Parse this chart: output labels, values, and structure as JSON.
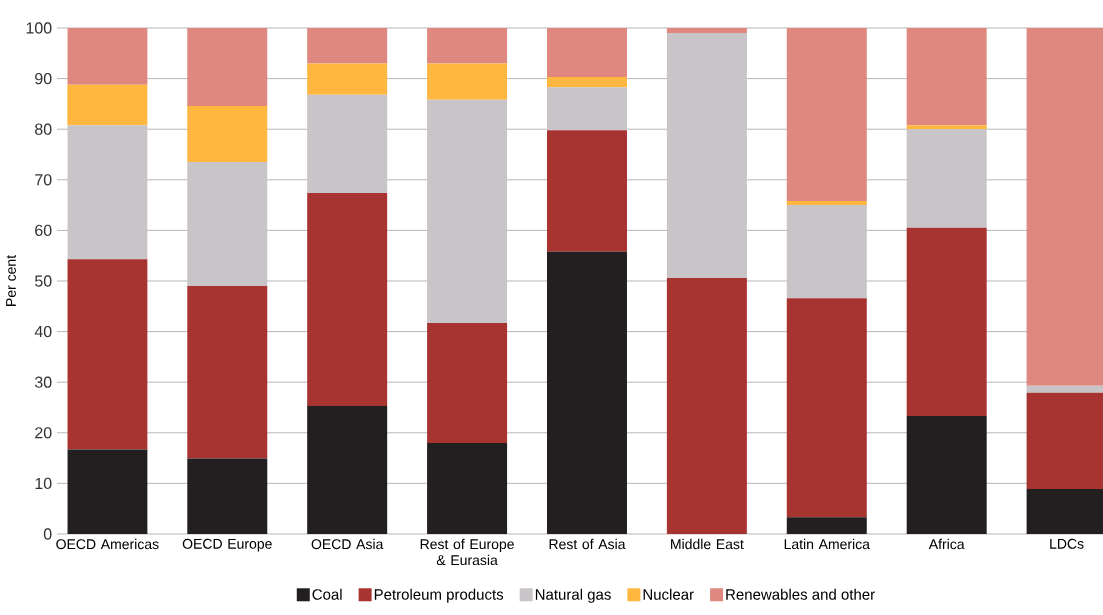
{
  "chart_data": {
    "type": "bar",
    "stacked": true,
    "ylabel": "Per cent",
    "categories": [
      "OECD Americas",
      "OECD Europe",
      "OECD Asia",
      "Rest of Europe & Eurasia",
      "Rest of Asia",
      "Middle East",
      "Latin America",
      "Africa",
      "LDCs"
    ],
    "series": [
      {
        "name": "Coal",
        "color": "#231f20",
        "values": [
          16.7,
          14.9,
          25.3,
          18.0,
          55.8,
          0,
          3.3,
          23.3,
          8.9
        ]
      },
      {
        "name": "Petroleum products",
        "color": "#a83432",
        "values": [
          37.6,
          34.1,
          42.1,
          23.7,
          24.0,
          50.6,
          43.3,
          37.2,
          19.0
        ]
      },
      {
        "name": "Natural gas",
        "color": "#c8c4c7",
        "values": [
          26.5,
          24.5,
          19.4,
          44.1,
          8.5,
          48.4,
          18.4,
          19.5,
          1.4
        ]
      },
      {
        "name": "Nuclear",
        "color": "#ffb740",
        "values": [
          8.0,
          11.1,
          6.2,
          7.2,
          2.0,
          0,
          0.8,
          0.8,
          0
        ]
      },
      {
        "name": "Renewables and other",
        "color": "#de8880",
        "values": [
          11.2,
          15.4,
          7.0,
          7.0,
          9.7,
          1.0,
          34.2,
          19.2,
          70.7
        ]
      }
    ],
    "ylim": [
      0,
      100
    ],
    "yticks": [
      0,
      10,
      20,
      30,
      40,
      50,
      60,
      70,
      80,
      90,
      100
    ],
    "grid": "y",
    "legend": "bottom"
  }
}
